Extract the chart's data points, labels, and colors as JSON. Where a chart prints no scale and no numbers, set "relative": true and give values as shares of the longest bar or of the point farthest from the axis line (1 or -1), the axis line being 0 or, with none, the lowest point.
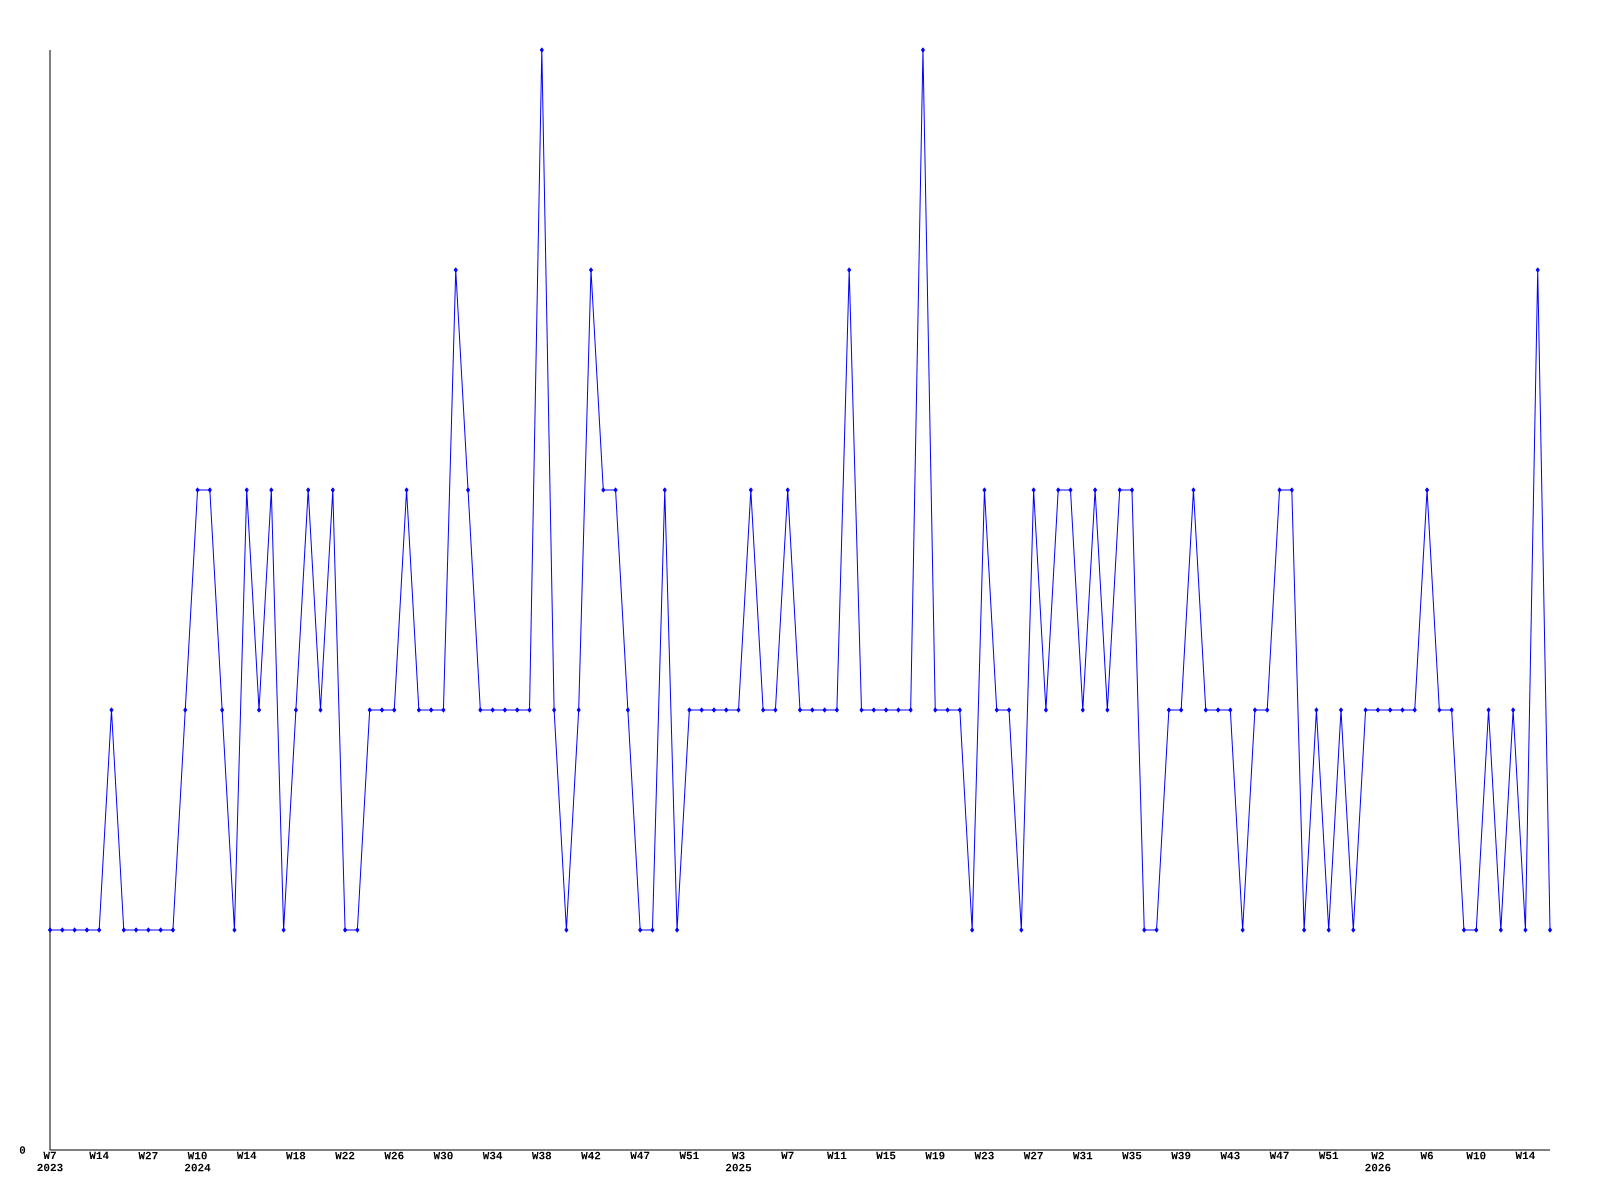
{
  "chart_data": {
    "type": "line",
    "relative": true,
    "annotations": [
      "0"
    ],
    "marker": "diamond",
    "line_style": "solid",
    "categories": [
      "W7 2023",
      null,
      null,
      null,
      "W14",
      null,
      null,
      null,
      "W27",
      null,
      null,
      null,
      "W10 2024",
      null,
      null,
      null,
      "W14",
      null,
      null,
      null,
      "W18",
      null,
      null,
      null,
      "W22",
      null,
      null,
      null,
      "W26",
      null,
      null,
      null,
      "W30",
      null,
      null,
      null,
      "W34",
      null,
      null,
      null,
      "W38",
      null,
      null,
      null,
      "W42",
      null,
      null,
      null,
      "W47",
      null,
      null,
      null,
      "W51",
      null,
      null,
      null,
      "W3 2025",
      null,
      null,
      null,
      "W7",
      null,
      null,
      null,
      "W11",
      null,
      null,
      null,
      "W15",
      null,
      null,
      null,
      "W19",
      null,
      null,
      null,
      "W23",
      null,
      null,
      null,
      "W27",
      null,
      null,
      null,
      "W31",
      null,
      null,
      null,
      "W35",
      null,
      null,
      null,
      "W39",
      null,
      null,
      null,
      "W43",
      null,
      null,
      null,
      "W47",
      null,
      null,
      null,
      "W51",
      null,
      null,
      null,
      "W2 2026",
      null,
      null,
      null,
      "W6",
      null,
      null,
      null,
      "W10",
      null,
      null,
      null,
      "W14",
      null,
      null
    ],
    "series": [
      {
        "color": "#0000ff",
        "values": [
          0.2,
          0.2,
          0.2,
          0.2,
          0.2,
          0.4,
          0.2,
          0.2,
          0.2,
          0.2,
          0.2,
          0.4,
          0.6,
          0.6,
          0.4,
          0.2,
          0.6,
          0.4,
          0.6,
          0.2,
          0.4,
          0.6,
          0.4,
          0.6,
          0.2,
          0.2,
          0.4,
          0.4,
          0.4,
          0.6,
          0.4,
          0.4,
          0.4,
          0.8,
          0.6,
          0.4,
          0.4,
          0.4,
          0.4,
          0.4,
          1,
          0.4,
          0.2,
          0.4,
          0.8,
          0.6,
          0.6,
          0.4,
          0.2,
          0.2,
          0.6,
          0.2,
          0.4,
          0.4,
          0.4,
          0.4,
          0.4,
          0.6,
          0.4,
          0.4,
          0.6,
          0.4,
          0.4,
          0.4,
          0.4,
          0.8,
          0.4,
          0.4,
          0.4,
          0.4,
          0.4,
          1,
          0.4,
          0.4,
          0.4,
          0.2,
          0.6,
          0.4,
          0.4,
          0.2,
          0.6,
          0.4,
          0.6,
          0.6,
          0.4,
          0.6,
          0.4,
          0.6,
          0.6,
          0.2,
          0.2,
          0.4,
          0.4,
          0.6,
          0.4,
          0.4,
          0.4,
          0.2,
          0.4,
          0.4,
          0.6,
          0.6,
          0.2,
          0.4,
          0.2,
          0.4,
          0.2,
          0.4,
          0.4,
          0.4,
          0.4,
          0.4,
          0.6,
          0.4,
          0.4,
          0.2,
          0.2,
          0.4,
          0.2,
          0.4,
          0.2,
          0.8,
          0.2
        ]
      }
    ]
  }
}
